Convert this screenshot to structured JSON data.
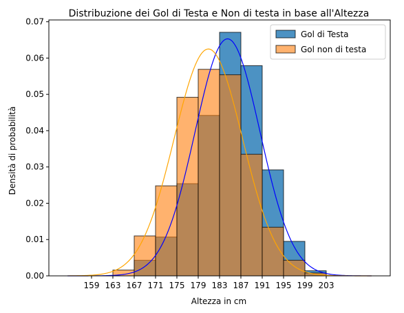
{
  "chart_data": {
    "type": "histogram",
    "title": "Distribuzione dei Gol di Testa e Non di testa in base all'Altezza",
    "xlabel": "Altezza in cm",
    "ylabel": "Densità di probabilità",
    "xlim": [
      151,
      215
    ],
    "ylim": [
      0,
      0.0705
    ],
    "xticks": [
      159,
      163,
      167,
      171,
      175,
      179,
      183,
      187,
      191,
      195,
      199,
      203
    ],
    "yticks": [
      0.0,
      0.01,
      0.02,
      0.03,
      0.04,
      0.05,
      0.06,
      0.07
    ],
    "ytick_labels": [
      "0.00",
      "0.01",
      "0.02",
      "0.03",
      "0.04",
      "0.05",
      "0.06",
      "0.07"
    ],
    "bin_edges": [
      163,
      167,
      171,
      175,
      179,
      183,
      187,
      191,
      195,
      199,
      203
    ],
    "legend_position": "upper right",
    "grid": false,
    "series": [
      {
        "name": "Gol di Testa",
        "color": "#1f77b4",
        "alpha": 0.8,
        "values": [
          0.0,
          0.0043,
          0.0107,
          0.0254,
          0.0442,
          0.0671,
          0.0579,
          0.0292,
          0.0095,
          0.0014
        ],
        "curve": {
          "type": "normal",
          "mean": 184.5,
          "sd": 6.1,
          "peak": 0.0653,
          "color": "#0000ff"
        }
      },
      {
        "name": "Gol non di testa",
        "color": "#ff7f0e",
        "alpha": 0.6,
        "values": [
          0.0016,
          0.011,
          0.0248,
          0.0492,
          0.0569,
          0.0554,
          0.0335,
          0.0134,
          0.0043,
          0.0008
        ],
        "curve": {
          "type": "normal",
          "mean": 180.9,
          "sd": 6.4,
          "peak": 0.0625,
          "color": "#ffa500"
        }
      }
    ]
  }
}
